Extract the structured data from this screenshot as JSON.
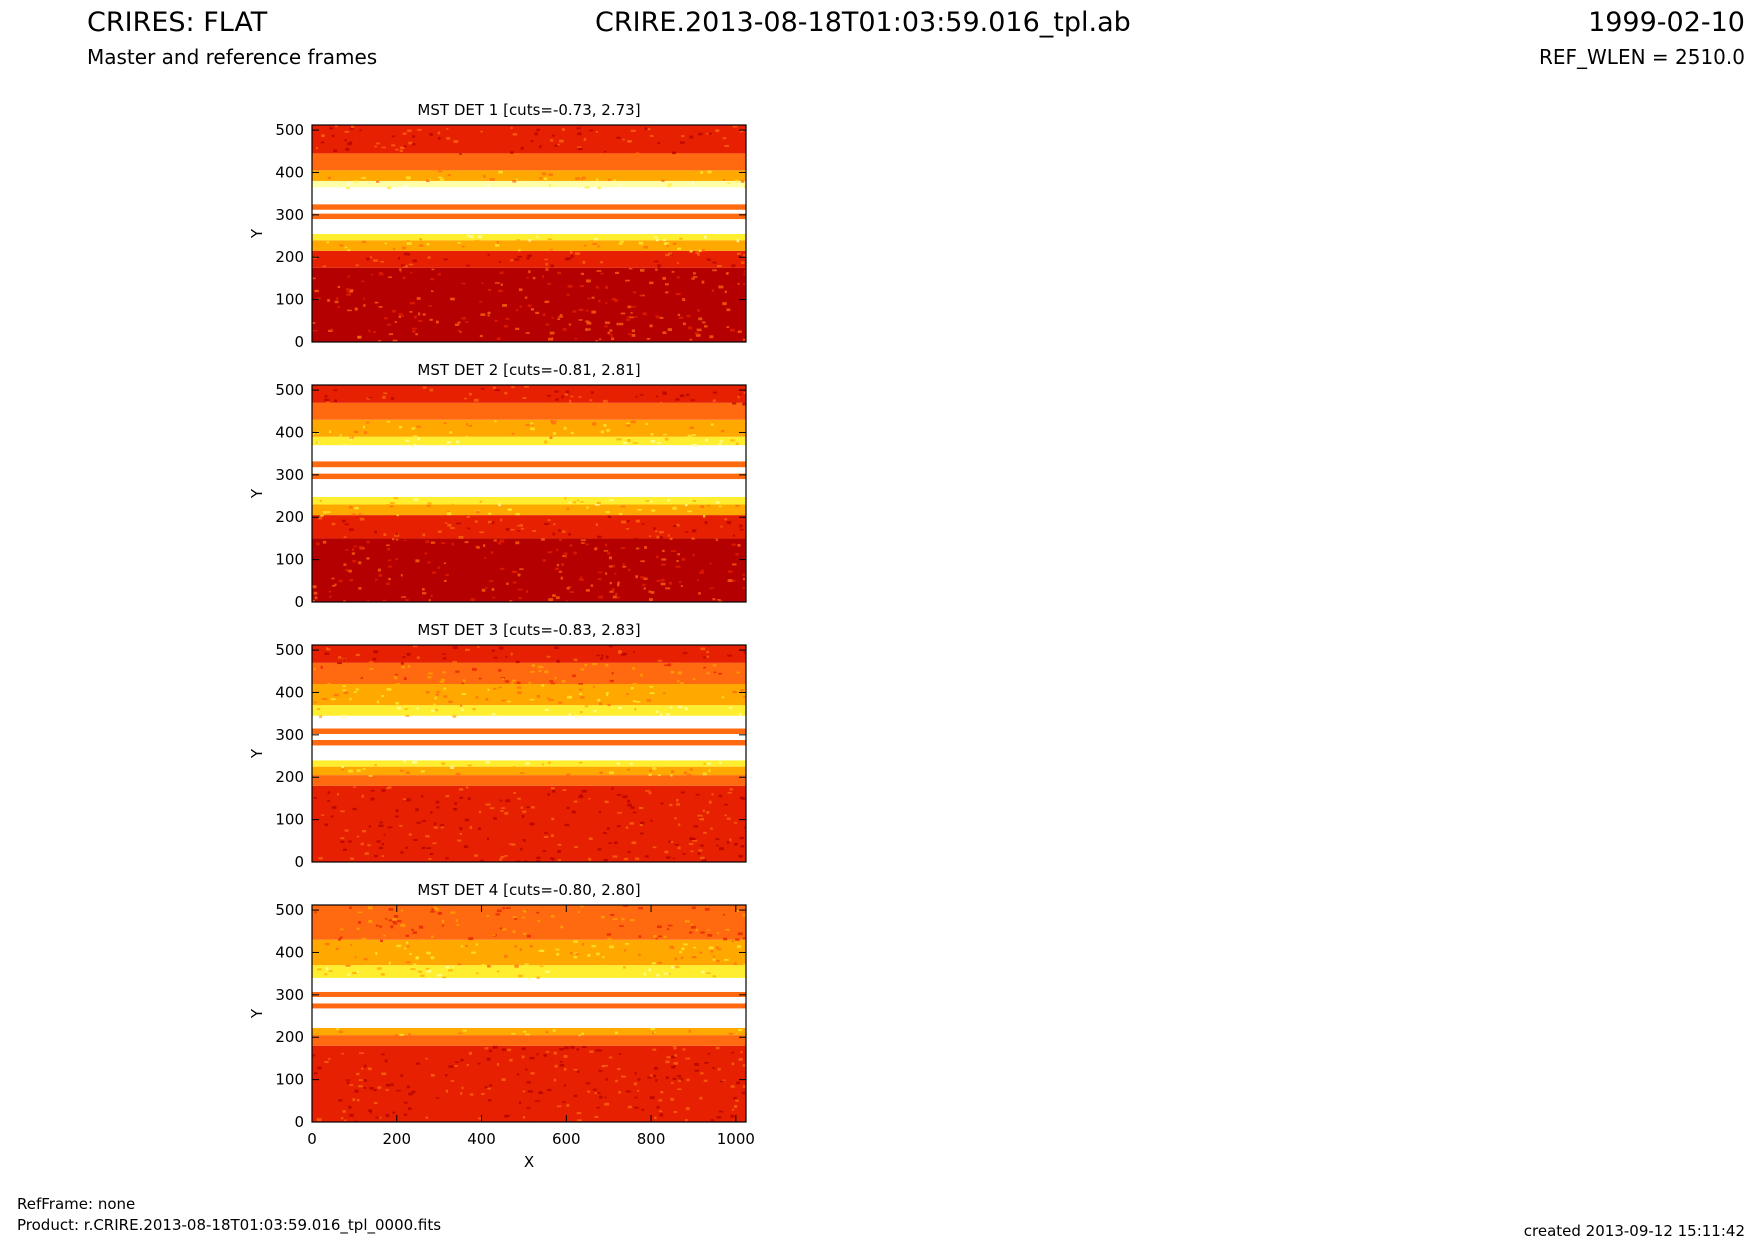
{
  "header": {
    "title": "CRIRES: FLAT",
    "subtitle": "Master and reference frames",
    "file": "CRIRE.2013-08-18T01:03:59.016_tpl.ab",
    "date": "1999-02-10",
    "ref_wlen": "REF_WLEN = 2510.0"
  },
  "footer": {
    "refframe": "RefFrame: none",
    "product": "Product: r.CRIRE.2013-08-18T01:03:59.016_tpl_0000.fits",
    "created": "created 2013-09-12 15:11:42"
  },
  "colors": {
    "dark": "#b40000",
    "red": "#e62000",
    "orange": "#ff6a10",
    "amber": "#ffa800",
    "yellow": "#ffee30",
    "pale": "#ffffa8",
    "white": "#ffffff"
  },
  "chart_data": [
    {
      "type": "heatmap",
      "title": "MST DET 1 [cuts=-0.73, 2.73]",
      "xlabel": "",
      "ylabel": "Y",
      "xlim": [
        0,
        1024
      ],
      "ylim": [
        0,
        512
      ],
      "xticks": [],
      "yticks": [
        0,
        100,
        200,
        300,
        400,
        500
      ],
      "bands": [
        {
          "y0": 0,
          "y1": 175,
          "level": "dark"
        },
        {
          "y0": 175,
          "y1": 215,
          "level": "red"
        },
        {
          "y0": 215,
          "y1": 240,
          "level": "amber"
        },
        {
          "y0": 240,
          "y1": 255,
          "level": "yellow"
        },
        {
          "y0": 255,
          "y1": 290,
          "level": "white"
        },
        {
          "y0": 290,
          "y1": 303,
          "level": "orange"
        },
        {
          "y0": 303,
          "y1": 312,
          "level": "white"
        },
        {
          "y0": 312,
          "y1": 325,
          "level": "orange"
        },
        {
          "y0": 325,
          "y1": 365,
          "level": "white"
        },
        {
          "y0": 365,
          "y1": 380,
          "level": "pale"
        },
        {
          "y0": 380,
          "y1": 405,
          "level": "amber"
        },
        {
          "y0": 405,
          "y1": 445,
          "level": "orange"
        },
        {
          "y0": 445,
          "y1": 512,
          "level": "red"
        }
      ]
    },
    {
      "type": "heatmap",
      "title": "MST DET 2 [cuts=-0.81, 2.81]",
      "xlabel": "",
      "ylabel": "Y",
      "xlim": [
        0,
        1024
      ],
      "ylim": [
        0,
        512
      ],
      "xticks": [],
      "yticks": [
        0,
        100,
        200,
        300,
        400,
        500
      ],
      "bands": [
        {
          "y0": 0,
          "y1": 150,
          "level": "dark"
        },
        {
          "y0": 150,
          "y1": 205,
          "level": "red"
        },
        {
          "y0": 205,
          "y1": 230,
          "level": "amber"
        },
        {
          "y0": 230,
          "y1": 248,
          "level": "yellow"
        },
        {
          "y0": 248,
          "y1": 290,
          "level": "white"
        },
        {
          "y0": 290,
          "y1": 303,
          "level": "orange"
        },
        {
          "y0": 303,
          "y1": 318,
          "level": "white"
        },
        {
          "y0": 318,
          "y1": 332,
          "level": "orange"
        },
        {
          "y0": 332,
          "y1": 370,
          "level": "white"
        },
        {
          "y0": 370,
          "y1": 390,
          "level": "yellow"
        },
        {
          "y0": 390,
          "y1": 430,
          "level": "amber"
        },
        {
          "y0": 430,
          "y1": 470,
          "level": "orange"
        },
        {
          "y0": 470,
          "y1": 512,
          "level": "red"
        }
      ]
    },
    {
      "type": "heatmap",
      "title": "MST DET 3 [cuts=-0.83, 2.83]",
      "xlabel": "",
      "ylabel": "Y",
      "xlim": [
        0,
        1024
      ],
      "ylim": [
        0,
        512
      ],
      "xticks": [],
      "yticks": [
        0,
        100,
        200,
        300,
        400,
        500
      ],
      "bands": [
        {
          "y0": 0,
          "y1": 180,
          "level": "red"
        },
        {
          "y0": 180,
          "y1": 205,
          "level": "orange"
        },
        {
          "y0": 205,
          "y1": 225,
          "level": "amber"
        },
        {
          "y0": 225,
          "y1": 240,
          "level": "yellow"
        },
        {
          "y0": 240,
          "y1": 275,
          "level": "white"
        },
        {
          "y0": 275,
          "y1": 288,
          "level": "orange"
        },
        {
          "y0": 288,
          "y1": 302,
          "level": "white"
        },
        {
          "y0": 302,
          "y1": 315,
          "level": "orange"
        },
        {
          "y0": 315,
          "y1": 345,
          "level": "white"
        },
        {
          "y0": 345,
          "y1": 370,
          "level": "yellow"
        },
        {
          "y0": 370,
          "y1": 420,
          "level": "amber"
        },
        {
          "y0": 420,
          "y1": 470,
          "level": "orange"
        },
        {
          "y0": 470,
          "y1": 512,
          "level": "red"
        }
      ]
    },
    {
      "type": "heatmap",
      "title": "MST DET 4 [cuts=-0.80, 2.80]",
      "xlabel": "X",
      "ylabel": "Y",
      "xlim": [
        0,
        1024
      ],
      "ylim": [
        0,
        512
      ],
      "xticks": [
        0,
        200,
        400,
        600,
        800,
        1000
      ],
      "yticks": [
        0,
        100,
        200,
        300,
        400,
        500
      ],
      "bands": [
        {
          "y0": 0,
          "y1": 180,
          "level": "red"
        },
        {
          "y0": 180,
          "y1": 205,
          "level": "orange"
        },
        {
          "y0": 205,
          "y1": 222,
          "level": "amber"
        },
        {
          "y0": 222,
          "y1": 268,
          "level": "white"
        },
        {
          "y0": 268,
          "y1": 280,
          "level": "orange"
        },
        {
          "y0": 280,
          "y1": 295,
          "level": "white"
        },
        {
          "y0": 295,
          "y1": 307,
          "level": "orange"
        },
        {
          "y0": 307,
          "y1": 340,
          "level": "white"
        },
        {
          "y0": 340,
          "y1": 370,
          "level": "yellow"
        },
        {
          "y0": 370,
          "y1": 430,
          "level": "amber"
        },
        {
          "y0": 430,
          "y1": 512,
          "level": "orange"
        }
      ]
    }
  ]
}
